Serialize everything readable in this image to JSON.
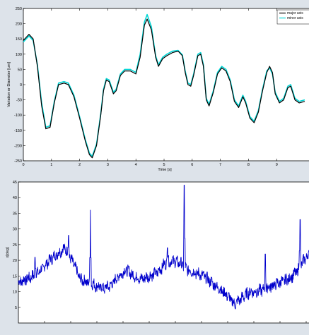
{
  "chart_data": [
    {
      "type": "line",
      "title": "",
      "xlabel": "Time [s]",
      "ylabel": "Variation or Diameter [um]",
      "xlim": [
        0,
        10
      ],
      "ylim": [
        -250,
        250
      ],
      "xticks": [
        0,
        1,
        2,
        3,
        4,
        5,
        6,
        7,
        8,
        9
      ],
      "yticks": [
        -250,
        -200,
        -150,
        -100,
        -50,
        0,
        50,
        100,
        150,
        200,
        250
      ],
      "legend": {
        "placement": "top-right"
      },
      "series": [
        {
          "name": "major axis",
          "color": "#000000",
          "points": [
            [
              0,
              145
            ],
            [
              0.2,
              165
            ],
            [
              0.35,
              150
            ],
            [
              0.5,
              60
            ],
            [
              0.65,
              -70
            ],
            [
              0.8,
              -145
            ],
            [
              0.95,
              -140
            ],
            [
              1.1,
              -60
            ],
            [
              1.25,
              0
            ],
            [
              1.45,
              5
            ],
            [
              1.6,
              0
            ],
            [
              1.8,
              -40
            ],
            [
              2.0,
              -110
            ],
            [
              2.2,
              -185
            ],
            [
              2.35,
              -230
            ],
            [
              2.45,
              -240
            ],
            [
              2.6,
              -200
            ],
            [
              2.75,
              -100
            ],
            [
              2.85,
              -20
            ],
            [
              2.95,
              15
            ],
            [
              3.05,
              10
            ],
            [
              3.2,
              -30
            ],
            [
              3.3,
              -20
            ],
            [
              3.45,
              30
            ],
            [
              3.6,
              45
            ],
            [
              3.8,
              45
            ],
            [
              4.0,
              35
            ],
            [
              4.15,
              90
            ],
            [
              4.3,
              195
            ],
            [
              4.4,
              215
            ],
            [
              4.55,
              180
            ],
            [
              4.7,
              90
            ],
            [
              4.8,
              60
            ],
            [
              4.95,
              85
            ],
            [
              5.1,
              95
            ],
            [
              5.3,
              105
            ],
            [
              5.5,
              110
            ],
            [
              5.65,
              95
            ],
            [
              5.75,
              40
            ],
            [
              5.85,
              0
            ],
            [
              5.95,
              -5
            ],
            [
              6.05,
              30
            ],
            [
              6.2,
              95
            ],
            [
              6.3,
              100
            ],
            [
              6.4,
              60
            ],
            [
              6.5,
              -50
            ],
            [
              6.6,
              -70
            ],
            [
              6.75,
              -25
            ],
            [
              6.9,
              35
            ],
            [
              7.05,
              55
            ],
            [
              7.2,
              45
            ],
            [
              7.35,
              10
            ],
            [
              7.5,
              -55
            ],
            [
              7.65,
              -75
            ],
            [
              7.8,
              -40
            ],
            [
              7.9,
              -60
            ],
            [
              8.05,
              -110
            ],
            [
              8.2,
              -125
            ],
            [
              8.35,
              -90
            ],
            [
              8.5,
              -20
            ],
            [
              8.65,
              40
            ],
            [
              8.75,
              60
            ],
            [
              8.85,
              40
            ],
            [
              8.95,
              -30
            ],
            [
              9.1,
              -60
            ],
            [
              9.25,
              -50
            ],
            [
              9.4,
              -10
            ],
            [
              9.5,
              -5
            ],
            [
              9.65,
              -50
            ],
            [
              9.8,
              -60
            ],
            [
              10.0,
              -55
            ]
          ]
        },
        {
          "name": "minor axis",
          "color": "#00d5d5",
          "points": [
            [
              0,
              140
            ],
            [
              0.2,
              160
            ],
            [
              0.35,
              145
            ],
            [
              0.5,
              65
            ],
            [
              0.65,
              -60
            ],
            [
              0.8,
              -140
            ],
            [
              0.95,
              -135
            ],
            [
              1.1,
              -55
            ],
            [
              1.25,
              5
            ],
            [
              1.45,
              10
            ],
            [
              1.6,
              5
            ],
            [
              1.8,
              -35
            ],
            [
              2.0,
              -105
            ],
            [
              2.2,
              -180
            ],
            [
              2.35,
              -225
            ],
            [
              2.45,
              -235
            ],
            [
              2.6,
              -195
            ],
            [
              2.75,
              -95
            ],
            [
              2.85,
              -15
            ],
            [
              2.95,
              20
            ],
            [
              3.05,
              15
            ],
            [
              3.2,
              -25
            ],
            [
              3.3,
              -15
            ],
            [
              3.45,
              35
            ],
            [
              3.6,
              50
            ],
            [
              3.8,
              50
            ],
            [
              4.0,
              40
            ],
            [
              4.15,
              100
            ],
            [
              4.3,
              205
            ],
            [
              4.4,
              230
            ],
            [
              4.55,
              190
            ],
            [
              4.7,
              95
            ],
            [
              4.8,
              65
            ],
            [
              4.95,
              90
            ],
            [
              5.1,
              100
            ],
            [
              5.3,
              110
            ],
            [
              5.5,
              112
            ],
            [
              5.65,
              98
            ],
            [
              5.75,
              45
            ],
            [
              5.85,
              5
            ],
            [
              5.95,
              0
            ],
            [
              6.05,
              35
            ],
            [
              6.2,
              100
            ],
            [
              6.3,
              105
            ],
            [
              6.4,
              65
            ],
            [
              6.5,
              -45
            ],
            [
              6.6,
              -65
            ],
            [
              6.75,
              -20
            ],
            [
              6.9,
              40
            ],
            [
              7.05,
              60
            ],
            [
              7.2,
              50
            ],
            [
              7.35,
              15
            ],
            [
              7.5,
              -50
            ],
            [
              7.65,
              -70
            ],
            [
              7.8,
              -35
            ],
            [
              7.9,
              -55
            ],
            [
              8.05,
              -105
            ],
            [
              8.2,
              -120
            ],
            [
              8.35,
              -85
            ],
            [
              8.5,
              -15
            ],
            [
              8.65,
              45
            ],
            [
              8.75,
              55
            ],
            [
              8.85,
              35
            ],
            [
              8.95,
              -25
            ],
            [
              9.1,
              -55
            ],
            [
              9.25,
              -45
            ],
            [
              9.4,
              -5
            ],
            [
              9.5,
              0
            ],
            [
              9.65,
              -45
            ],
            [
              9.8,
              -55
            ],
            [
              10.0,
              -50
            ]
          ]
        }
      ]
    },
    {
      "type": "line",
      "title": "",
      "xlabel": "",
      "ylabel": "x[deg]",
      "xlim": [
        0,
        10
      ],
      "ylim": [
        0,
        45
      ],
      "yticks": [
        5,
        10,
        15,
        20,
        25,
        30,
        35,
        40,
        45
      ],
      "legend": null,
      "series": [
        {
          "color": "#0000cc",
          "baseline": [
            [
              0,
              13
            ],
            [
              0.3,
              14
            ],
            [
              0.6,
              15
            ],
            [
              0.9,
              17
            ],
            [
              1.2,
              20
            ],
            [
              1.5,
              22
            ],
            [
              1.8,
              24
            ],
            [
              2.0,
              21
            ],
            [
              2.2,
              18
            ],
            [
              2.4,
              14
            ],
            [
              2.7,
              13
            ],
            [
              3.0,
              12
            ],
            [
              3.3,
              11
            ],
            [
              3.6,
              12
            ],
            [
              3.9,
              15
            ],
            [
              4.2,
              17
            ],
            [
              4.5,
              15
            ],
            [
              4.8,
              14
            ],
            [
              5.1,
              15
            ],
            [
              5.4,
              16
            ],
            [
              5.7,
              19
            ],
            [
              6.0,
              20
            ],
            [
              6.3,
              19
            ],
            [
              6.6,
              17
            ],
            [
              6.9,
              16
            ],
            [
              7.2,
              15
            ],
            [
              7.5,
              13
            ],
            [
              7.8,
              11
            ],
            [
              8.1,
              9
            ],
            [
              8.4,
              6
            ],
            [
              8.7,
              8
            ],
            [
              9.0,
              10
            ],
            [
              9.3,
              10
            ],
            [
              9.6,
              11
            ],
            [
              9.9,
              12
            ],
            [
              10.2,
              13
            ],
            [
              10.5,
              14
            ],
            [
              10.8,
              16
            ],
            [
              11.1,
              20
            ],
            [
              11.3,
              22
            ]
          ],
          "spikes": [
            [
              0.65,
              21
            ],
            [
              1.95,
              28
            ],
            [
              2.8,
              36
            ],
            [
              5.8,
              24
            ],
            [
              6.45,
              44
            ],
            [
              9.6,
              22
            ],
            [
              10.95,
              33
            ]
          ],
          "xmax": 11.3
        }
      ]
    }
  ]
}
